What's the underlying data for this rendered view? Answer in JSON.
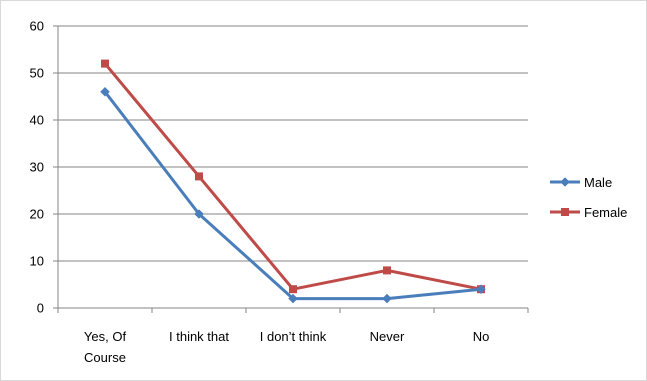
{
  "chart_data": {
    "type": "line",
    "title": "",
    "xlabel": "",
    "ylabel": "",
    "categories": [
      [
        "Yes, Of",
        "Course"
      ],
      [
        "I think that"
      ],
      [
        "I don’t think"
      ],
      [
        "Never"
      ],
      [
        "No"
      ]
    ],
    "ylim": [
      0,
      60
    ],
    "yticks": [
      0,
      10,
      20,
      30,
      40,
      50,
      60
    ],
    "grid": true,
    "legend_position": "right",
    "series": [
      {
        "name": "Male",
        "values": [
          46,
          20,
          2,
          2,
          4
        ],
        "color": "#4a7ebb",
        "marker": "diamond"
      },
      {
        "name": "Female",
        "values": [
          52,
          28,
          4,
          8,
          4
        ],
        "color": "#be4b48",
        "marker": "square"
      }
    ]
  }
}
